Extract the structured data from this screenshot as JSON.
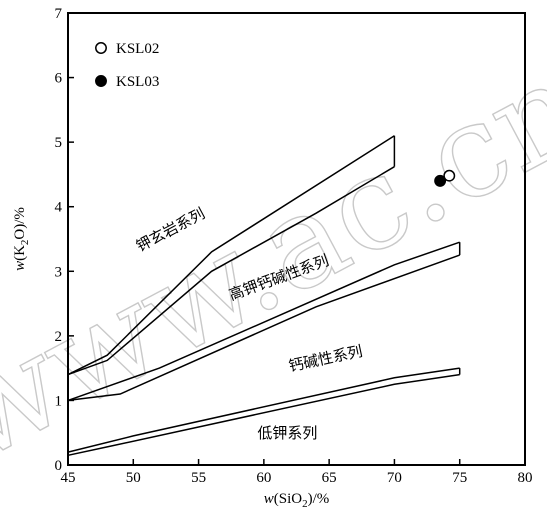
{
  "chart_data": {
    "type": "line",
    "xlabel": {
      "prefix": "w(SiO",
      "sub": "2",
      "suffix": ")/%"
    },
    "ylabel": {
      "prefix": "w(K",
      "sub": "2",
      "suffix": "O)/%"
    },
    "xlim": [
      45,
      80
    ],
    "ylim": [
      0,
      7
    ],
    "xticks": [
      45,
      50,
      55,
      60,
      65,
      70,
      75,
      80
    ],
    "yticks": [
      0,
      1,
      2,
      3,
      4,
      5,
      6,
      7
    ],
    "grid": false,
    "fields": [
      {
        "name": "钾玄岩系列",
        "upper": [
          [
            45,
            1.4
          ],
          [
            48,
            1.7
          ],
          [
            56,
            3.3
          ],
          [
            70,
            5.1
          ]
        ],
        "lower": [
          [
            45,
            1.4
          ],
          [
            48,
            1.62
          ],
          [
            56,
            3.0
          ],
          [
            64,
            3.9
          ],
          [
            70,
            4.62
          ]
        ],
        "right_edge": [
          [
            70,
            5.1
          ],
          [
            70,
            4.62
          ]
        ]
      },
      {
        "name": "高钾钙碱性系列",
        "upper": [
          [
            45,
            1.0
          ],
          [
            52,
            1.5
          ],
          [
            70,
            3.1
          ],
          [
            75,
            3.45
          ]
        ],
        "lower": [
          [
            45,
            1.0
          ],
          [
            49,
            1.1
          ],
          [
            64,
            2.45
          ],
          [
            75,
            3.25
          ]
        ],
        "right_edge": [
          [
            75,
            3.45
          ],
          [
            75,
            3.25
          ]
        ]
      },
      {
        "name": "钙碱性系列",
        "label_only": true
      },
      {
        "name": "低钾系列",
        "upper": [
          [
            45,
            0.2
          ],
          [
            50,
            0.45
          ],
          [
            70,
            1.35
          ],
          [
            75,
            1.5
          ]
        ],
        "lower": [
          [
            45,
            0.15
          ],
          [
            48,
            0.28
          ],
          [
            70,
            1.25
          ],
          [
            75,
            1.4
          ]
        ],
        "right_edge": [
          [
            75,
            1.5
          ],
          [
            75,
            1.4
          ]
        ]
      }
    ],
    "series": [
      {
        "name": "KSL02",
        "marker": "open-circle",
        "x": [
          74.2
        ],
        "y": [
          4.48
        ]
      },
      {
        "name": "KSL03",
        "marker": "filled-circle",
        "x": [
          73.5
        ],
        "y": [
          4.4
        ]
      }
    ],
    "field_labels": [
      {
        "text": "钾玄岩系列",
        "x": 50.5,
        "y": 3.3,
        "angle": -28
      },
      {
        "text": "高钾钙碱性系列",
        "x": 57.5,
        "y": 2.55,
        "angle": -20
      },
      {
        "text": "钙碱性系列",
        "x": 62.0,
        "y": 1.45,
        "angle": -12
      },
      {
        "text": "低钾系列",
        "x": 59.5,
        "y": 0.42,
        "angle": 0
      }
    ],
    "legend_placement": "top-left",
    "watermark": "www.ac.cn"
  }
}
